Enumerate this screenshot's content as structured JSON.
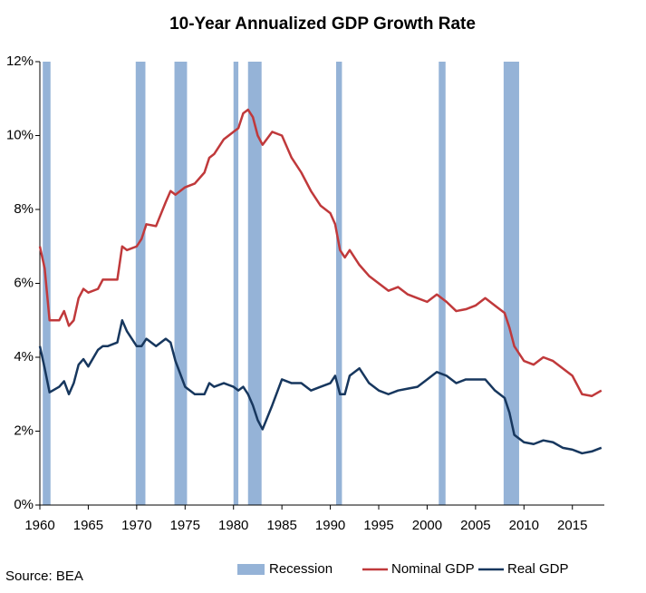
{
  "chart_data": {
    "type": "line",
    "title": "10-Year Annualized GDP Growth Rate",
    "source": "Source: BEA",
    "recession_label": "Recession",
    "recession_color": "#95b3d7",
    "recessions": [
      [
        1960.3,
        1961.1
      ],
      [
        1969.9,
        1970.9
      ],
      [
        1973.9,
        1975.2
      ],
      [
        1980.0,
        1980.5
      ],
      [
        1981.5,
        1982.9
      ],
      [
        1990.6,
        1991.2
      ],
      [
        2001.2,
        2001.9
      ],
      [
        2007.9,
        2009.5
      ]
    ],
    "x": [
      1960,
      1960.5,
      1961,
      1962,
      1962.5,
      1963,
      1963.5,
      1964,
      1964.5,
      1965,
      1966,
      1966.5,
      1967,
      1968,
      1968.5,
      1969,
      1970,
      1970.5,
      1971,
      1972,
      1973,
      1973.5,
      1974,
      1975,
      1976,
      1977,
      1977.5,
      1978,
      1979,
      1980,
      1980.5,
      1981,
      1981.5,
      1982,
      1982.5,
      1983,
      1984,
      1985,
      1986,
      1987,
      1988,
      1989,
      1990,
      1990.5,
      1991,
      1991.5,
      1992,
      1993,
      1994,
      1995,
      1996,
      1997,
      1998,
      1999,
      2000,
      2001,
      2002,
      2003,
      2004,
      2005,
      2006,
      2007,
      2008,
      2008.5,
      2009,
      2010,
      2011,
      2012,
      2013,
      2014,
      2015,
      2016,
      2017,
      2018
    ],
    "series": [
      {
        "name": "Nominal GDP",
        "color": "#c0393b",
        "values": [
          7.0,
          6.4,
          5.0,
          5.0,
          5.25,
          4.85,
          5.0,
          5.6,
          5.85,
          5.75,
          5.85,
          6.1,
          6.1,
          6.1,
          7.0,
          6.9,
          7.0,
          7.2,
          7.6,
          7.55,
          8.2,
          8.5,
          8.4,
          8.6,
          8.7,
          9.0,
          9.4,
          9.5,
          9.9,
          10.1,
          10.2,
          10.6,
          10.7,
          10.5,
          10.0,
          9.75,
          10.1,
          10.0,
          9.4,
          9.0,
          8.5,
          8.1,
          7.9,
          7.6,
          6.9,
          6.7,
          6.9,
          6.5,
          6.2,
          6.0,
          5.8,
          5.9,
          5.7,
          5.6,
          5.5,
          5.7,
          5.5,
          5.25,
          5.3,
          5.4,
          5.6,
          5.4,
          5.2,
          4.8,
          4.3,
          3.9,
          3.8,
          4.0,
          3.9,
          3.7,
          3.5,
          3.0,
          2.95,
          3.1
        ]
      },
      {
        "name": "Real GDP",
        "color": "#17375e",
        "values": [
          4.3,
          3.7,
          3.05,
          3.2,
          3.35,
          3.0,
          3.3,
          3.8,
          3.95,
          3.75,
          4.2,
          4.3,
          4.3,
          4.4,
          5.0,
          4.7,
          4.3,
          4.3,
          4.5,
          4.3,
          4.5,
          4.4,
          3.9,
          3.2,
          3.0,
          3.0,
          3.3,
          3.2,
          3.3,
          3.2,
          3.1,
          3.2,
          3.0,
          2.7,
          2.3,
          2.05,
          2.7,
          3.4,
          3.3,
          3.3,
          3.1,
          3.2,
          3.3,
          3.5,
          3.0,
          3.0,
          3.5,
          3.7,
          3.3,
          3.1,
          3.0,
          3.1,
          3.15,
          3.2,
          3.4,
          3.6,
          3.5,
          3.3,
          3.4,
          3.4,
          3.4,
          3.1,
          2.9,
          2.5,
          1.9,
          1.7,
          1.65,
          1.75,
          1.7,
          1.55,
          1.5,
          1.4,
          1.45,
          1.55
        ]
      }
    ],
    "xlim": [
      1960,
      2018.3
    ],
    "xticks": [
      1960,
      1965,
      1970,
      1975,
      1980,
      1985,
      1990,
      1995,
      2000,
      2005,
      2010,
      2015
    ],
    "ylim": [
      0,
      12
    ],
    "yticks": [
      {
        "value": 0,
        "label": "0%"
      },
      {
        "value": 2,
        "label": "2%"
      },
      {
        "value": 4,
        "label": "4%"
      },
      {
        "value": 6,
        "label": "6%"
      },
      {
        "value": 8,
        "label": "8%"
      },
      {
        "value": 10,
        "label": "10%"
      },
      {
        "value": 12,
        "label": "12%"
      }
    ],
    "grid": false
  }
}
